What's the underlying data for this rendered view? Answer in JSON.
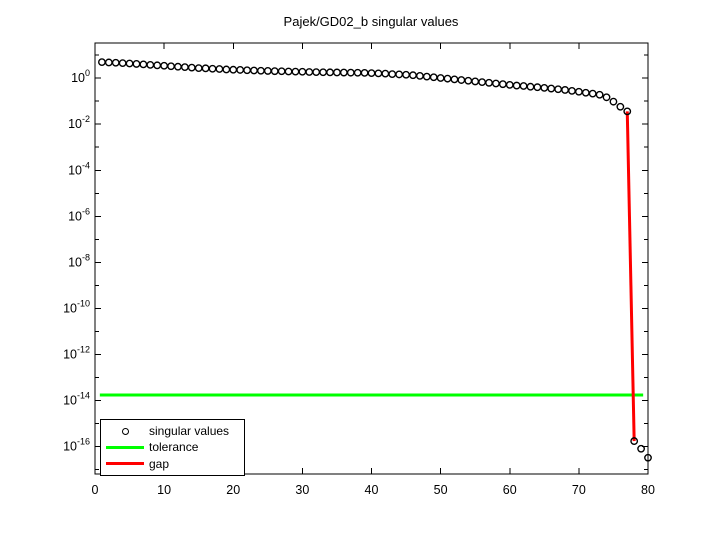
{
  "figure": {
    "title": "Pajek/GD02_b singular values",
    "background": "#ffffff"
  },
  "legend": {
    "position": "bottom-left",
    "items": [
      {
        "label": "singular values",
        "swatch": "circle-marker",
        "color": "#000000"
      },
      {
        "label": "tolerance",
        "swatch": "line",
        "color": "#00ff00"
      },
      {
        "label": "gap",
        "swatch": "line",
        "color": "#ff0000"
      }
    ]
  },
  "chart_data": {
    "type": "scatter",
    "title": "Pajek/GD02_b singular values",
    "xlabel": "",
    "ylabel": "",
    "grid": false,
    "legend_position": "bottom-left",
    "y_scale": "log",
    "xlim": [
      0,
      80
    ],
    "ylim_log10": [
      -17.2,
      1.53
    ],
    "x_ticks": [
      0,
      10,
      20,
      30,
      40,
      50,
      60,
      70,
      80
    ],
    "y_labeled_exponents": [
      0,
      -2,
      -4,
      -6,
      -8,
      -10,
      -12,
      -14,
      -16
    ],
    "y_minor_exponents": [
      1,
      -1,
      -3,
      -5,
      -7,
      -9,
      -11,
      -13,
      -15,
      -17
    ],
    "y_tick_labels": [
      "10^0",
      "10^-2",
      "10^-4",
      "10^-6",
      "10^-8",
      "10^-10",
      "10^-12",
      "10^-14",
      "10^-16"
    ],
    "axis_color": "#000000",
    "marker": "o",
    "marker_color": "#000000",
    "x": [
      1,
      2,
      3,
      4,
      5,
      6,
      7,
      8,
      9,
      10,
      11,
      12,
      13,
      14,
      15,
      16,
      17,
      18,
      19,
      20,
      21,
      22,
      23,
      24,
      25,
      26,
      27,
      28,
      29,
      30,
      31,
      32,
      33,
      34,
      35,
      36,
      37,
      38,
      39,
      40,
      41,
      42,
      43,
      44,
      45,
      46,
      47,
      48,
      49,
      50,
      51,
      52,
      53,
      54,
      55,
      56,
      57,
      58,
      59,
      60,
      61,
      62,
      63,
      64,
      65,
      66,
      67,
      68,
      69,
      70,
      71,
      72,
      73,
      74,
      75,
      76,
      77,
      78,
      79,
      80
    ],
    "values": [
      5.01,
      4.84,
      4.68,
      4.52,
      4.37,
      4.17,
      3.98,
      3.8,
      3.63,
      3.47,
      3.31,
      3.16,
      3.02,
      2.88,
      2.75,
      2.69,
      2.57,
      2.51,
      2.4,
      2.34,
      2.29,
      2.21,
      2.16,
      2.11,
      2.07,
      2.02,
      2.0,
      1.95,
      1.93,
      1.91,
      1.86,
      1.84,
      1.82,
      1.8,
      1.78,
      1.76,
      1.74,
      1.72,
      1.7,
      1.66,
      1.62,
      1.58,
      1.51,
      1.46,
      1.41,
      1.35,
      1.26,
      1.17,
      1.1,
      1.02,
      0.955,
      0.891,
      0.832,
      0.776,
      0.724,
      0.676,
      0.631,
      0.589,
      0.55,
      0.513,
      0.479,
      0.457,
      0.427,
      0.407,
      0.38,
      0.355,
      0.331,
      0.309,
      0.282,
      0.257,
      0.234,
      0.214,
      0.191,
      0.148,
      0.0955,
      0.0575,
      0.0363,
      1.7e-16,
      7.9e-17,
      3.2e-17
    ],
    "series": [
      {
        "name": "singular values",
        "type": "scatter",
        "color": "#000000"
      },
      {
        "name": "tolerance",
        "type": "hline",
        "color": "#00ff00",
        "value": 1.7e-14
      },
      {
        "name": "gap",
        "type": "segment",
        "color": "#ff0000",
        "from_x": 77,
        "to_x": 78
      }
    ],
    "tolerance": {
      "value": 1.7e-14,
      "x_span": [
        0.7,
        79.3
      ],
      "color": "#00ff00"
    },
    "gap": {
      "x_from": 77,
      "x_to": 78,
      "color": "#ff0000"
    }
  }
}
